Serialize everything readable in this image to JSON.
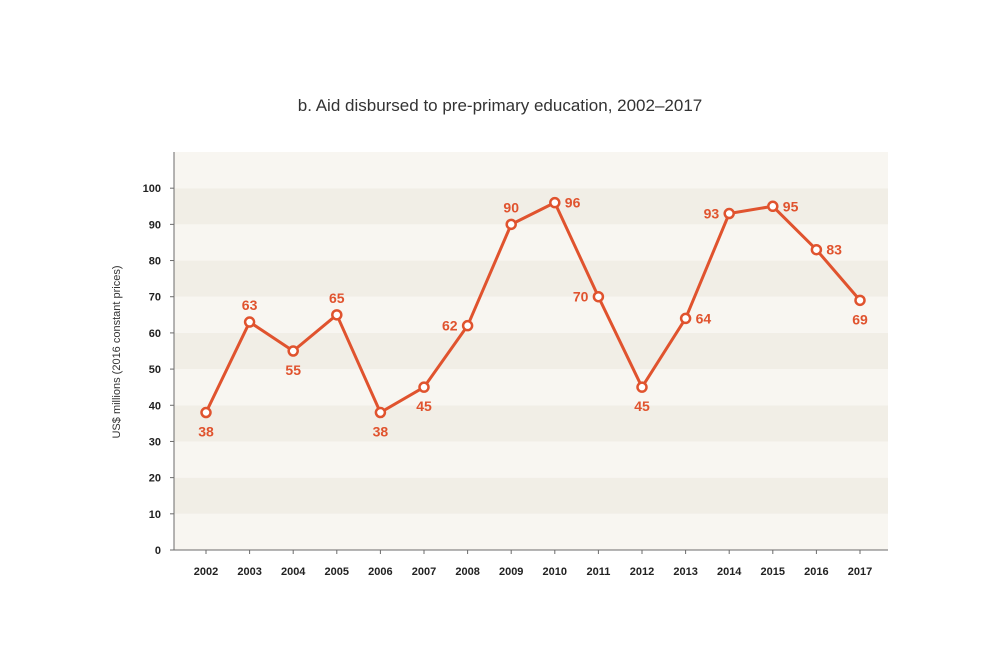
{
  "colors": {
    "line": "#e0532e",
    "band_light": "#f8f6f1",
    "band_dark": "#f1eee6",
    "axis": "#6b6b6b"
  },
  "chart_data": {
    "type": "line",
    "title": "b. Aid disbursed to pre-primary education, 2002–2017",
    "xlabel": "",
    "ylabel": "US$ millions (2016 constant prices)",
    "ylim": [
      0,
      110
    ],
    "yticks": [
      0,
      10,
      20,
      30,
      40,
      50,
      60,
      70,
      80,
      90,
      100
    ],
    "grid": "alternating horizontal bands",
    "legend": "none",
    "categories": [
      "2002",
      "2003",
      "2004",
      "2005",
      "2006",
      "2007",
      "2008",
      "2009",
      "2010",
      "2011",
      "2012",
      "2013",
      "2014",
      "2015",
      "2016",
      "2017"
    ],
    "series": [
      {
        "values": [
          38,
          63,
          55,
          65,
          38,
          45,
          62,
          90,
          96,
          70,
          45,
          64,
          93,
          95,
          83,
          69
        ]
      }
    ],
    "data_label_positions": [
      "below",
      "above",
      "below",
      "above",
      "below",
      "below",
      "left",
      "above",
      "right",
      "left",
      "below",
      "right",
      "left",
      "right",
      "right",
      "below"
    ]
  }
}
